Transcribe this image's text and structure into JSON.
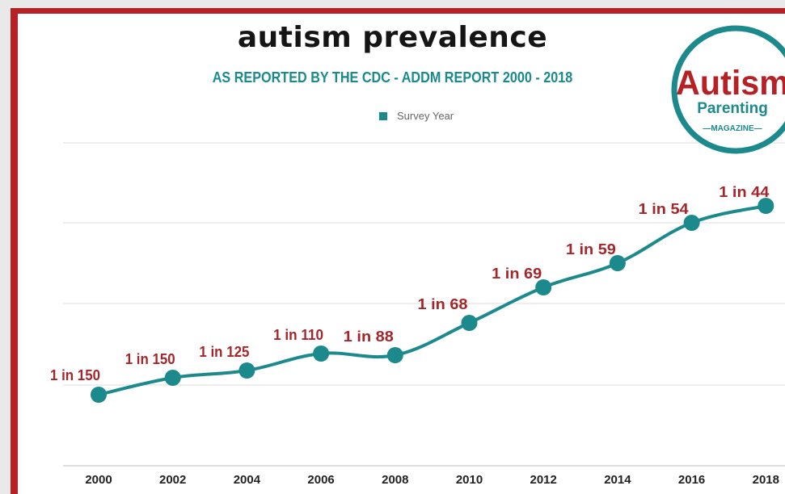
{
  "header": {
    "title": "autism prevalence",
    "subtitle": "AS REPORTED BY THE CDC - ADDM REPORT 2000 - 2018"
  },
  "logo": {
    "line1": "Autism",
    "line2": "Parenting",
    "line3": "—MAGAZINE—"
  },
  "colors": {
    "series": "#1c8a8c",
    "label": "#a5262a",
    "frame": "#b52125",
    "subtitle": "#1a8a8e"
  },
  "chart_data": {
    "type": "line",
    "title": "autism prevalence",
    "subtitle": "AS REPORTED BY THE CDC - ADDM REPORT 2000 - 2018",
    "legend": "top-center",
    "grid": true,
    "x": [
      "2000",
      "2002",
      "2004",
      "2006",
      "2008",
      "2010",
      "2012",
      "2014",
      "2016",
      "2018"
    ],
    "series": [
      {
        "name": "Survey Year",
        "values": [
          0.0067,
          0.0067,
          0.008,
          0.0091,
          0.0114,
          0.0147,
          0.0145,
          0.0169,
          0.0185,
          0.0227
        ],
        "labels": [
          "1 in 150",
          "1 in 150",
          "1 in 125",
          "1 in 110",
          "1 in 88",
          "1 in 68",
          "1 in 69",
          "1 in 59",
          "1 in 54",
          "1 in 44"
        ]
      }
    ]
  }
}
